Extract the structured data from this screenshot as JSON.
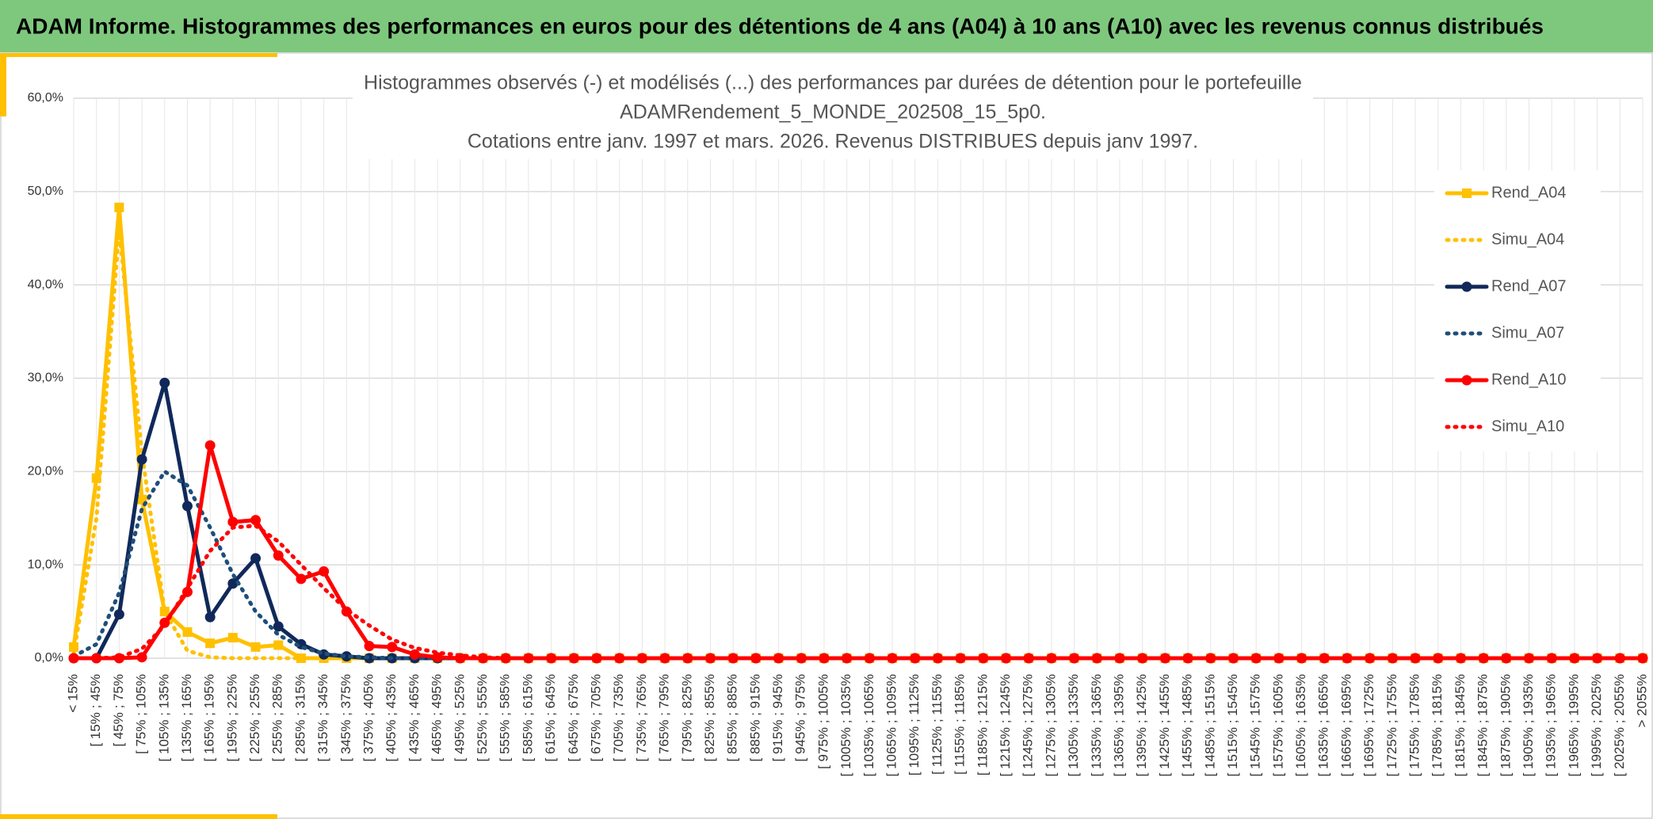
{
  "header": {
    "title": "ADAM Informe. Histogrammes des performances en euros pour des détentions de 4 ans (A04) à 10 ans (A10) avec les revenus connus distribués"
  },
  "chart_data": {
    "type": "line",
    "title": [
      "Histogrammes observés (-) et modélisés (...) des performances par durées de détention pour le portefeuille",
      "ADAMRendement_5_MONDE_202508_15_5p0.",
      "Cotations entre janv. 1997 et mars. 2026. Revenus DISTRIBUES depuis janv 1997."
    ],
    "categories": [
      "< 15%",
      "[ 15% ; 45%",
      "[ 45% ; 75%",
      "[ 75% ; 105%",
      "[ 105% ; 135%",
      "[ 135% ; 165%",
      "[ 165% ; 195%",
      "[ 195% ; 225%",
      "[ 225% ; 255%",
      "[ 255% ; 285%",
      "[ 285% ; 315%",
      "[ 315% ; 345%",
      "[ 345% ; 375%",
      "[ 375% ; 405%",
      "[ 405% ; 435%",
      "[ 435% ; 465%",
      "[ 465% ; 495%",
      "[ 495% ; 525%",
      "[ 525% ; 555%",
      "[ 555% ; 585%",
      "[ 585% ; 615%",
      "[ 615% ; 645%",
      "[ 645% ; 675%",
      "[ 675% ; 705%",
      "[ 705% ; 735%",
      "[ 735% ; 765%",
      "[ 765% ; 795%",
      "[ 795% ; 825%",
      "[ 825% ; 855%",
      "[ 855% ; 885%",
      "[ 885% ; 915%",
      "[ 915% ; 945%",
      "[ 945% ; 975%",
      "[ 975% ; 1005%",
      "[ 1005% ; 1035%",
      "[ 1035% ; 1065%",
      "[ 1065% ; 1095%",
      "[ 1095% ; 1125%",
      "[ 1125% ; 1155%",
      "[ 1155% ; 1185%",
      "[ 1185% ; 1215%",
      "[ 1215% ; 1245%",
      "[ 1245% ; 1275%",
      "[ 1275% ; 1305%",
      "[ 1305% ; 1335%",
      "[ 1335% ; 1365%",
      "[ 1365% ; 1395%",
      "[ 1395% ; 1425%",
      "[ 1425% ; 1455%",
      "[ 1455% ; 1485%",
      "[ 1485% ; 1515%",
      "[ 1515% ; 1545%",
      "[ 1545% ; 1575%",
      "[ 1575% ; 1605%",
      "[ 1605% ; 1635%",
      "[ 1635% ; 1665%",
      "[ 1665% ; 1695%",
      "[ 1695% ; 1725%",
      "[ 1725% ; 1755%",
      "[ 1755% ; 1785%",
      "[ 1785% ; 1815%",
      "[ 1815% ; 1845%",
      "[ 1845% ; 1875%",
      "[ 1875% ; 1905%",
      "[ 1905% ; 1935%",
      "[ 1935% ; 1965%",
      "[ 1965% ; 1995%",
      "[ 1995% ; 2025%",
      "[ 2025% ; 2055%",
      "> 2055%"
    ],
    "series": [
      {
        "name": "Rend_A04",
        "color": "#ffc000",
        "line_style": "solid",
        "marker": "square",
        "values": [
          1.2,
          19.3,
          48.3,
          17,
          5,
          2.8,
          1.6,
          2.2,
          1.2,
          1.4,
          0,
          0,
          0,
          0,
          0,
          0,
          0,
          0,
          0,
          0,
          0,
          0,
          0,
          0,
          0,
          0,
          0,
          0,
          0,
          0,
          0,
          0,
          0,
          0,
          0,
          0,
          0,
          0,
          0,
          0,
          0,
          0,
          0,
          0,
          0,
          0,
          0,
          0,
          0,
          0,
          0,
          0,
          0,
          0,
          0,
          0,
          0,
          0,
          0,
          0,
          0,
          0,
          0,
          0,
          0,
          0,
          0,
          0,
          0,
          0
        ]
      },
      {
        "name": "Simu_A04",
        "color": "#ffc000",
        "line_style": "dotted",
        "values": [
          0.5,
          15,
          46,
          22,
          5,
          0.8,
          0.1,
          0,
          0,
          0,
          0,
          0,
          0,
          0,
          0,
          0,
          0,
          0,
          0,
          0,
          0,
          0,
          0,
          0,
          0,
          0,
          0,
          0,
          0,
          0,
          0,
          0,
          0,
          0,
          0,
          0,
          0,
          0,
          0,
          0,
          0,
          0,
          0,
          0,
          0,
          0,
          0,
          0,
          0,
          0,
          0,
          0,
          0,
          0,
          0,
          0,
          0,
          0,
          0,
          0,
          0,
          0,
          0,
          0,
          0,
          0,
          0,
          0,
          0,
          0
        ]
      },
      {
        "name": "Rend_A07",
        "color": "#10295a",
        "line_style": "solid",
        "marker": "circle",
        "values": [
          0,
          0,
          4.7,
          21.3,
          29.5,
          16.3,
          4.4,
          8,
          10.7,
          3.4,
          1.5,
          0.4,
          0.2,
          0,
          0,
          0,
          0,
          0,
          0,
          0,
          0,
          0,
          0,
          0,
          0,
          0,
          0,
          0,
          0,
          0,
          0,
          0,
          0,
          0,
          0,
          0,
          0,
          0,
          0,
          0,
          0,
          0,
          0,
          0,
          0,
          0,
          0,
          0,
          0,
          0,
          0,
          0,
          0,
          0,
          0,
          0,
          0,
          0,
          0,
          0,
          0,
          0,
          0,
          0,
          0,
          0,
          0,
          0,
          0,
          0
        ]
      },
      {
        "name": "Simu_A07",
        "color": "#1f4e79",
        "line_style": "dotted",
        "values": [
          0.2,
          1.5,
          7,
          16,
          20,
          18.5,
          14,
          9,
          5,
          2.5,
          1.2,
          0.5,
          0.2,
          0.1,
          0,
          0,
          0,
          0,
          0,
          0,
          0,
          0,
          0,
          0,
          0,
          0,
          0,
          0,
          0,
          0,
          0,
          0,
          0,
          0,
          0,
          0,
          0,
          0,
          0,
          0,
          0,
          0,
          0,
          0,
          0,
          0,
          0,
          0,
          0,
          0,
          0,
          0,
          0,
          0,
          0,
          0,
          0,
          0,
          0,
          0,
          0,
          0,
          0,
          0,
          0,
          0,
          0,
          0,
          0,
          0
        ]
      },
      {
        "name": "Rend_A10",
        "color": "#ff0000",
        "line_style": "solid",
        "marker": "circle",
        "values": [
          0,
          0,
          0,
          0.1,
          3.8,
          7.1,
          22.8,
          14.6,
          14.8,
          11,
          8.5,
          9.3,
          5,
          1.3,
          1.2,
          0.4,
          0.1,
          0,
          0,
          0,
          0,
          0,
          0,
          0,
          0,
          0,
          0,
          0,
          0,
          0,
          0,
          0,
          0,
          0,
          0,
          0,
          0,
          0,
          0,
          0,
          0,
          0,
          0,
          0,
          0,
          0,
          0,
          0,
          0,
          0,
          0,
          0,
          0,
          0,
          0,
          0,
          0,
          0,
          0,
          0,
          0,
          0,
          0,
          0,
          0,
          0,
          0,
          0,
          0,
          0
        ]
      },
      {
        "name": "Simu_A10",
        "color": "#ff0000",
        "line_style": "dotted",
        "values": [
          0,
          0,
          0.1,
          1,
          3.5,
          7.5,
          11.5,
          14,
          14.2,
          12.5,
          10,
          7.5,
          5.2,
          3.5,
          2,
          1.1,
          0.6,
          0.3,
          0.1,
          0,
          0,
          0,
          0,
          0,
          0,
          0,
          0,
          0,
          0,
          0,
          0,
          0,
          0,
          0,
          0,
          0,
          0,
          0,
          0,
          0,
          0,
          0,
          0,
          0,
          0,
          0,
          0,
          0,
          0,
          0,
          0,
          0,
          0,
          0,
          0,
          0,
          0,
          0,
          0,
          0,
          0,
          0,
          0,
          0,
          0,
          0,
          0,
          0,
          0,
          0
        ]
      }
    ],
    "ylim": [
      0,
      60
    ],
    "yticks": [
      {
        "value": 0,
        "label": "0,0%"
      },
      {
        "value": 10,
        "label": "10,0%"
      },
      {
        "value": 20,
        "label": "20,0%"
      },
      {
        "value": 30,
        "label": "30,0%"
      },
      {
        "value": 40,
        "label": "40,0%"
      },
      {
        "value": 50,
        "label": "50,0%"
      },
      {
        "value": 60,
        "label": "60,0%"
      }
    ],
    "grid": true,
    "legend": "right"
  }
}
